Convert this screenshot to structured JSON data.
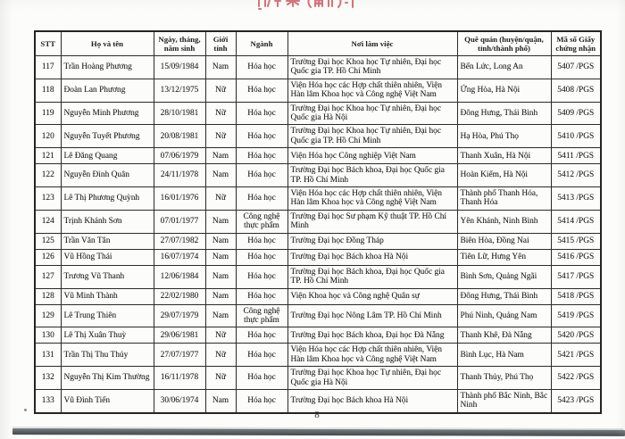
{
  "page": {
    "number": "8"
  },
  "table": {
    "headers": [
      "STT",
      "Họ và tên",
      "Ngày, tháng, năm sinh",
      "Giới tính",
      "Ngành",
      "Nơi làm việc",
      "Quê quán (huyện/quận, tỉnh/thành phố)",
      "Mã số Giấy chứng nhận"
    ],
    "rows": [
      [
        "117",
        "Trần Hoàng Phương",
        "15/09/1984",
        "Nam",
        "Hóa học",
        "Trường Đại học Khoa học Tự nhiên, Đại học Quốc gia TP. Hồ Chí Minh",
        "Bến Lức, Long An",
        "5407 /PGS"
      ],
      [
        "118",
        "Đoàn Lan Phương",
        "13/12/1975",
        "Nữ",
        "Hóa học",
        "Viện Hóa học các Hợp chất thiên nhiên, Viện Hàn lâm Khoa học và Công nghệ Việt Nam",
        "Ứng Hòa, Hà Nội",
        "5408 /PGS"
      ],
      [
        "119",
        "Nguyễn Minh Phương",
        "28/10/1981",
        "Nữ",
        "Hóa học",
        "Trường Đại học Khoa học Tự nhiên, Đại học Quốc gia Hà Nội",
        "Đông Hưng, Thái Bình",
        "5409 /PGS"
      ],
      [
        "120",
        "Nguyễn Tuyết Phương",
        "20/08/1981",
        "Nữ",
        "Hóa học",
        "Trường Đại học Khoa học Tự nhiên, Đại học Quốc gia TP. Hồ Chí Minh",
        "Hạ Hòa, Phú Thọ",
        "5410 /PGS"
      ],
      [
        "121",
        "Lê Đăng Quang",
        "07/06/1979",
        "Nam",
        "Hóa học",
        "Viện Hóa học Công nghiệp Việt Nam",
        "Thanh Xuân, Hà Nội",
        "5411 /PGS"
      ],
      [
        "122",
        "Nguyễn Đình Quân",
        "24/11/1978",
        "Nam",
        "Hóa học",
        "Trường Đại học Bách khoa, Đại học Quốc gia TP. Hồ Chí Minh",
        "Hoàn Kiếm, Hà Nội",
        "5412 /PGS"
      ],
      [
        "123",
        "Lê Thị Phương Quỳnh",
        "16/01/1976",
        "Nữ",
        "Hóa học",
        "Viện Hóa học các Hợp chất thiên nhiên, Viện Hàn lâm Khoa học và Công nghệ Việt Nam",
        "Thành phố Thanh Hóa, Thanh Hóa",
        "5413 /PGS"
      ],
      [
        "124",
        "Trịnh Khánh Sơn",
        "07/01/1977",
        "Nam",
        "Công nghệ thực phẩm",
        "Trường Đại học Sư phạm Kỹ thuật TP. Hồ Chí Minh",
        "Yên Khánh, Ninh Bình",
        "5414 /PGS"
      ],
      [
        "125",
        "Trần Văn Tân",
        "27/07/1982",
        "Nam",
        "Hóa học",
        "Trường Đại học Đồng Tháp",
        "Biên Hòa, Đồng Nai",
        "5415 /PGS"
      ],
      [
        "126",
        "Vũ Hồng Thái",
        "16/07/1974",
        "Nam",
        "Hóa học",
        "Trường Đại học Bách khoa Hà Nội",
        "Tiên Lữ, Hưng Yên",
        "5416 /PGS"
      ],
      [
        "127",
        "Trương Vũ Thanh",
        "12/06/1984",
        "Nam",
        "Hóa học",
        "Trường Đại học Bách khoa, Đại học Quốc gia TP. Hồ Chí Minh",
        "Bình Sơn, Quảng Ngãi",
        "5417 /PGS"
      ],
      [
        "128",
        "Vũ Minh Thành",
        "22/02/1980",
        "Nam",
        "Hóa học",
        "Viện Khoa học và Công nghệ Quân sự",
        "Đông Hưng, Thái Bình",
        "5418 /PGS"
      ],
      [
        "129",
        "Lê Trung Thiên",
        "29/07/1979",
        "Nam",
        "Công nghệ thực phẩm",
        "Trường Đại học Nông Lâm TP. Hồ Chí Minh",
        "Phú Ninh, Quảng Nam",
        "5419 /PGS"
      ],
      [
        "130",
        "Lê Thị Xuân Thuỳ",
        "29/06/1981",
        "Nữ",
        "Hóa học",
        "Trường Đại học Bách khoa, Đại học Đà Nẵng",
        "Thanh Khê, Đà Nẵng",
        "5420 /PGS"
      ],
      [
        "131",
        "Trần Thị Thu Thúy",
        "27/07/1977",
        "Nữ",
        "Hóa học",
        "Viện Hóa học các Hợp chất thiên nhiên, Viện Hàn lâm Khoa học và Công nghệ Việt Nam",
        "Bình Lục, Hà Nam",
        "5421 /PGS"
      ],
      [
        "132",
        "Nguyễn Thị Kim Thường",
        "16/11/1978",
        "Nữ",
        "Hóa học",
        "Trường Đại học Khoa học Tự nhiên, Đại học Quốc gia Hà Nội",
        "Thanh Thủy, Phú Thọ",
        "5422 /PGS"
      ],
      [
        "133",
        "Vũ Đình Tiến",
        "30/06/1974",
        "Nam",
        "Hóa học",
        "Trường Đại học Bách khoa Hà Nội",
        "Thành phố Bắc Ninh, Bắc Ninh",
        "5423 /PGS"
      ]
    ]
  },
  "decorations": {
    "red_ink_stamp": "red-ink-mark",
    "scan_edge_band": "scanner-edge-shadow"
  }
}
